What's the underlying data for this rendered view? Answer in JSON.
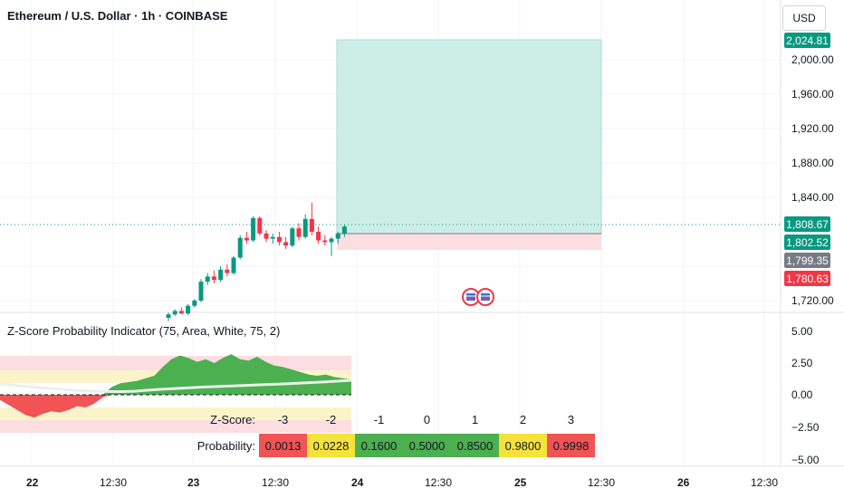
{
  "header": {
    "symbol_title": "Ethereum / U.S. Dollar · 1h · COINBASE",
    "currency_button": "USD"
  },
  "indicator": {
    "title": "Z-Score Probability Indicator (75, Area, White, 75, 2)"
  },
  "price_axis": {
    "ticks": [
      "2,000.00",
      "1,960.00",
      "1,920.00",
      "1,880.00",
      "1,840.00",
      "1,720.00"
    ]
  },
  "price_badges": [
    {
      "label": "2,024.81",
      "color": "#089981"
    },
    {
      "label": "1,808.67",
      "color": "#089981"
    },
    {
      "label": "1,802.52",
      "color": "#089981"
    },
    {
      "label": "1,799.35",
      "color": "#787b86"
    },
    {
      "label": "1,780.63",
      "color": "#f23645"
    }
  ],
  "indicator_axis": {
    "ticks": [
      "5.00",
      "2.50",
      "0.00",
      "−2.50",
      "−5.00"
    ]
  },
  "time_axis": {
    "labels": [
      {
        "text": "22",
        "bold": true
      },
      {
        "text": "12:30",
        "bold": false
      },
      {
        "text": "23",
        "bold": true
      },
      {
        "text": "12:30",
        "bold": false
      },
      {
        "text": "24",
        "bold": true
      },
      {
        "text": "12:30",
        "bold": false
      },
      {
        "text": "25",
        "bold": true
      },
      {
        "text": "12:30",
        "bold": false
      },
      {
        "text": "26",
        "bold": true
      },
      {
        "text": "12:30",
        "bold": false
      }
    ]
  },
  "zscore_table": {
    "zscore_label": "Z-Score:",
    "probability_label": "Probability:",
    "zscores": [
      "-3",
      "-2",
      "-1",
      "0",
      "1",
      "2",
      "3"
    ],
    "probabilities": [
      {
        "value": "0.0013",
        "color": "#f05454"
      },
      {
        "value": "0.0228",
        "color": "#f5e23a"
      },
      {
        "value": "0.1600",
        "color": "#4caf50"
      },
      {
        "value": "0.5000",
        "color": "#4caf50"
      },
      {
        "value": "0.8500",
        "color": "#4caf50"
      },
      {
        "value": "0.9800",
        "color": "#f5e23a"
      },
      {
        "value": "0.9998",
        "color": "#f05454"
      }
    ]
  },
  "colors": {
    "up": "#089981",
    "down": "#f23645",
    "target_zone": "#cdeee6",
    "stop_zone": "#fcdde1"
  },
  "chart_data": {
    "type": "candlestick",
    "instrument": "Ethereum / U.S. Dollar",
    "interval": "1h",
    "exchange": "COINBASE",
    "ylim": [
      1700,
      2040
    ],
    "candles": [
      {
        "o": 1700,
        "h": 1706,
        "l": 1696,
        "c": 1704
      },
      {
        "o": 1704,
        "h": 1710,
        "l": 1702,
        "c": 1708
      },
      {
        "o": 1708,
        "h": 1712,
        "l": 1704,
        "c": 1705
      },
      {
        "o": 1705,
        "h": 1716,
        "l": 1703,
        "c": 1714
      },
      {
        "o": 1714,
        "h": 1722,
        "l": 1712,
        "c": 1720
      },
      {
        "o": 1720,
        "h": 1745,
        "l": 1718,
        "c": 1742
      },
      {
        "o": 1742,
        "h": 1752,
        "l": 1738,
        "c": 1748
      },
      {
        "o": 1748,
        "h": 1755,
        "l": 1740,
        "c": 1744
      },
      {
        "o": 1744,
        "h": 1760,
        "l": 1742,
        "c": 1756
      },
      {
        "o": 1756,
        "h": 1762,
        "l": 1748,
        "c": 1752
      },
      {
        "o": 1752,
        "h": 1772,
        "l": 1750,
        "c": 1770
      },
      {
        "o": 1770,
        "h": 1796,
        "l": 1768,
        "c": 1793
      },
      {
        "o": 1793,
        "h": 1800,
        "l": 1786,
        "c": 1790
      },
      {
        "o": 1790,
        "h": 1818,
        "l": 1788,
        "c": 1816
      },
      {
        "o": 1816,
        "h": 1818,
        "l": 1796,
        "c": 1798
      },
      {
        "o": 1798,
        "h": 1802,
        "l": 1788,
        "c": 1792
      },
      {
        "o": 1792,
        "h": 1798,
        "l": 1786,
        "c": 1794
      },
      {
        "o": 1794,
        "h": 1800,
        "l": 1784,
        "c": 1788
      },
      {
        "o": 1788,
        "h": 1794,
        "l": 1780,
        "c": 1784
      },
      {
        "o": 1784,
        "h": 1806,
        "l": 1782,
        "c": 1804
      },
      {
        "o": 1804,
        "h": 1810,
        "l": 1790,
        "c": 1794
      },
      {
        "o": 1794,
        "h": 1820,
        "l": 1792,
        "c": 1815
      },
      {
        "o": 1815,
        "h": 1834,
        "l": 1796,
        "c": 1800
      },
      {
        "o": 1800,
        "h": 1806,
        "l": 1786,
        "c": 1790
      },
      {
        "o": 1790,
        "h": 1796,
        "l": 1784,
        "c": 1788
      },
      {
        "o": 1788,
        "h": 1794,
        "l": 1772,
        "c": 1792
      },
      {
        "o": 1792,
        "h": 1800,
        "l": 1786,
        "c": 1798
      },
      {
        "o": 1798,
        "h": 1808,
        "l": 1794,
        "c": 1806
      }
    ],
    "current_price": 1808.67,
    "position": {
      "entry": 1802.52,
      "target": 2024.81,
      "stop": 1780.63
    },
    "zscore_series": [
      -0.4,
      -0.8,
      -1.2,
      -1.6,
      -1.8,
      -1.5,
      -1.3,
      -1.4,
      -1.2,
      -0.9,
      -1.0,
      -0.7,
      -0.2,
      0.6,
      0.9,
      1.0,
      1.1,
      1.3,
      1.5,
      2.2,
      2.8,
      3.1,
      2.9,
      2.6,
      2.8,
      2.5,
      2.9,
      3.2,
      2.8,
      2.7,
      3.0,
      2.6,
      2.3,
      2.2,
      2.0,
      1.8,
      1.6,
      1.5,
      1.6,
      1.4,
      1.3,
      1.2
    ],
    "indicator_ylim": [
      -5.5,
      5.5
    ]
  }
}
